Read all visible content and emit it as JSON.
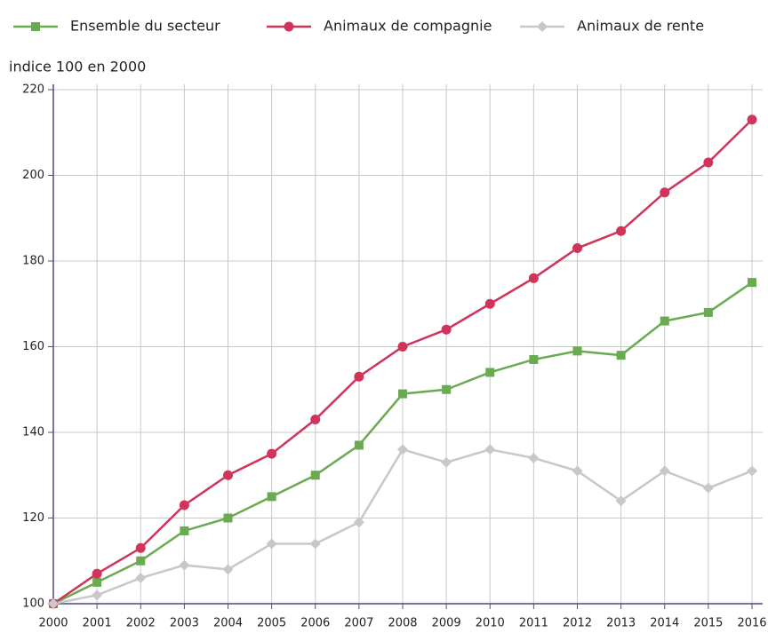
{
  "chart_data": {
    "type": "line",
    "y_axis_label": "indice 100 en 2000",
    "x": [
      2000,
      2001,
      2002,
      2003,
      2004,
      2005,
      2006,
      2007,
      2008,
      2009,
      2010,
      2011,
      2012,
      2013,
      2014,
      2015,
      2016
    ],
    "xlim": [
      2000,
      2016
    ],
    "xticks": [
      2000,
      2001,
      2002,
      2003,
      2004,
      2005,
      2006,
      2007,
      2008,
      2009,
      2010,
      2011,
      2012,
      2013,
      2014,
      2015,
      2016
    ],
    "ylim": [
      100,
      220
    ],
    "yticks": [
      100,
      120,
      140,
      160,
      180,
      200,
      220
    ],
    "grid": true,
    "legend": "top",
    "series": [
      {
        "name": "Ensemble du secteur",
        "color": "#6aaa50",
        "marker": "square",
        "values": [
          100,
          105,
          110,
          117,
          120,
          125,
          130,
          137,
          149,
          150,
          154,
          157,
          159,
          158,
          166,
          168,
          175
        ]
      },
      {
        "name": "Animaux de compagnie",
        "color": "#d0345a",
        "marker": "circle",
        "values": [
          100,
          107,
          113,
          123,
          130,
          135,
          143,
          153,
          160,
          164,
          170,
          176,
          183,
          187,
          196,
          203,
          213
        ]
      },
      {
        "name": "Animaux de rente",
        "color": "#c8c8c8",
        "marker": "diamond",
        "values": [
          100,
          102,
          106,
          109,
          108,
          114,
          114,
          119,
          136,
          133,
          136,
          134,
          131,
          124,
          131,
          127,
          131
        ]
      }
    ]
  }
}
